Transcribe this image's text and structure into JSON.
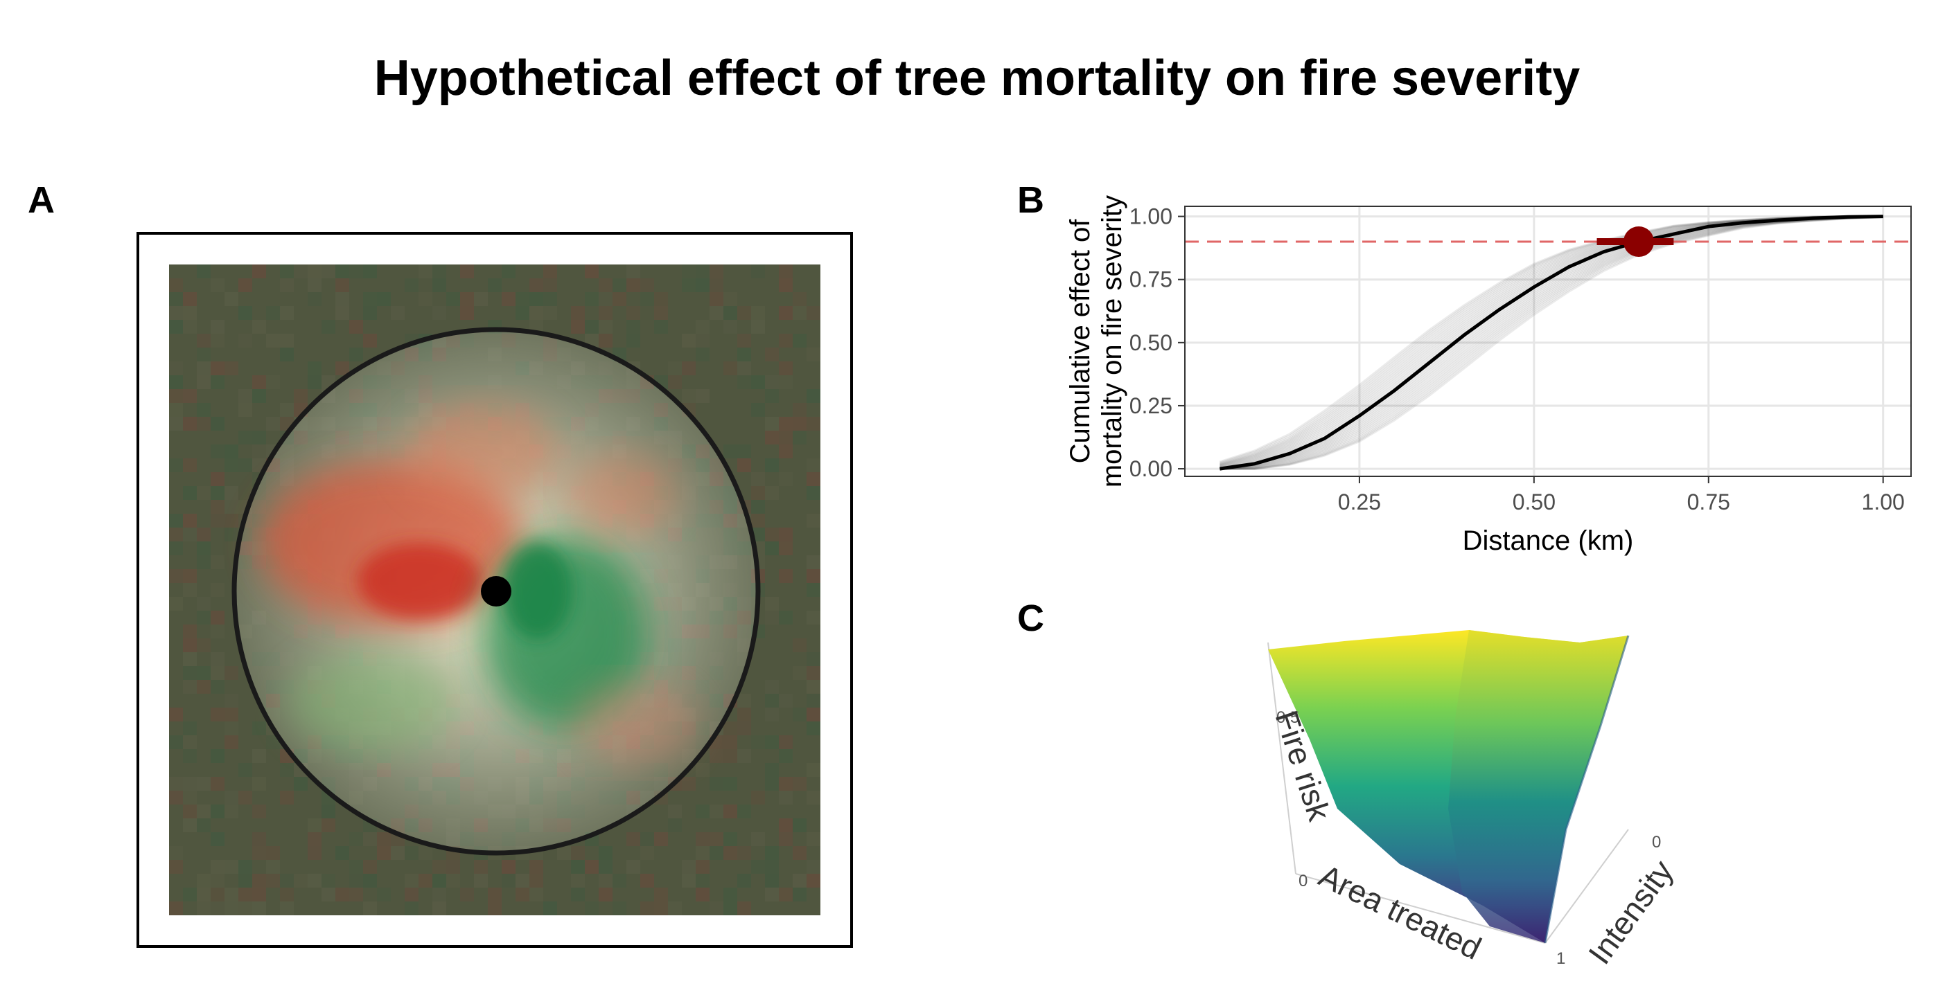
{
  "title": "Hypothetical effect of tree mortality on fire severity",
  "panels": {
    "a": "A",
    "b": "B",
    "c": "C"
  },
  "colors": {
    "map_background": "#50563f",
    "positive_effect": "#d73027",
    "negative_effect": "#1a9850",
    "curve": "#000000",
    "threshold_line": "#e06666",
    "marker": "#8b0000",
    "surface_low": "#440154",
    "surface_mid": "#21918c",
    "surface_high": "#fde725"
  },
  "chart_data": [
    {
      "panel": "A",
      "type": "heatmap",
      "description_free": true,
      "center_marker": true,
      "buffer_circle": true,
      "gradient": [
        "#d73027",
        "#f5f0c8",
        "#1a9850"
      ]
    },
    {
      "panel": "B",
      "type": "line",
      "xlabel": "Distance (km)",
      "ylabel": "Cumulative effect of mortality on fire severity",
      "ylabel_lines": [
        "Cumulative effect of",
        "mortality on fire severity"
      ],
      "xlim": [
        0.0,
        1.04
      ],
      "ylim": [
        -0.03,
        1.04
      ],
      "xticks": [
        0.25,
        0.5,
        0.75,
        1.0
      ],
      "xtick_labels": [
        "0.25",
        "0.50",
        "0.75",
        "1.00"
      ],
      "yticks": [
        0.0,
        0.25,
        0.5,
        0.75,
        1.0
      ],
      "ytick_labels": [
        "0.00",
        "0.25",
        "0.50",
        "0.75",
        "1.00"
      ],
      "grid": true,
      "mean_curve": {
        "x": [
          0.05,
          0.1,
          0.15,
          0.2,
          0.25,
          0.3,
          0.35,
          0.4,
          0.45,
          0.5,
          0.55,
          0.6,
          0.65,
          0.7,
          0.75,
          0.8,
          0.85,
          0.9,
          0.95,
          1.0
        ],
        "y": [
          0.0,
          0.02,
          0.06,
          0.12,
          0.21,
          0.31,
          0.42,
          0.53,
          0.63,
          0.72,
          0.8,
          0.86,
          0.9,
          0.93,
          0.96,
          0.975,
          0.985,
          0.993,
          0.998,
          1.0
        ]
      },
      "posterior_draws": 30,
      "threshold_y": 0.9,
      "point_estimate": {
        "x": 0.65,
        "y": 0.9,
        "xmin": 0.59,
        "xmax": 0.7
      }
    },
    {
      "panel": "C",
      "type": "surface",
      "axes": {
        "x": {
          "label": "Area treated",
          "ticks": [
            "0",
            "1"
          ]
        },
        "y": {
          "label": "Intensity",
          "ticks": [
            "0",
            "1"
          ]
        },
        "z": {
          "label": "Fire risk",
          "ticks": [
            "0.5"
          ]
        }
      }
    }
  ]
}
